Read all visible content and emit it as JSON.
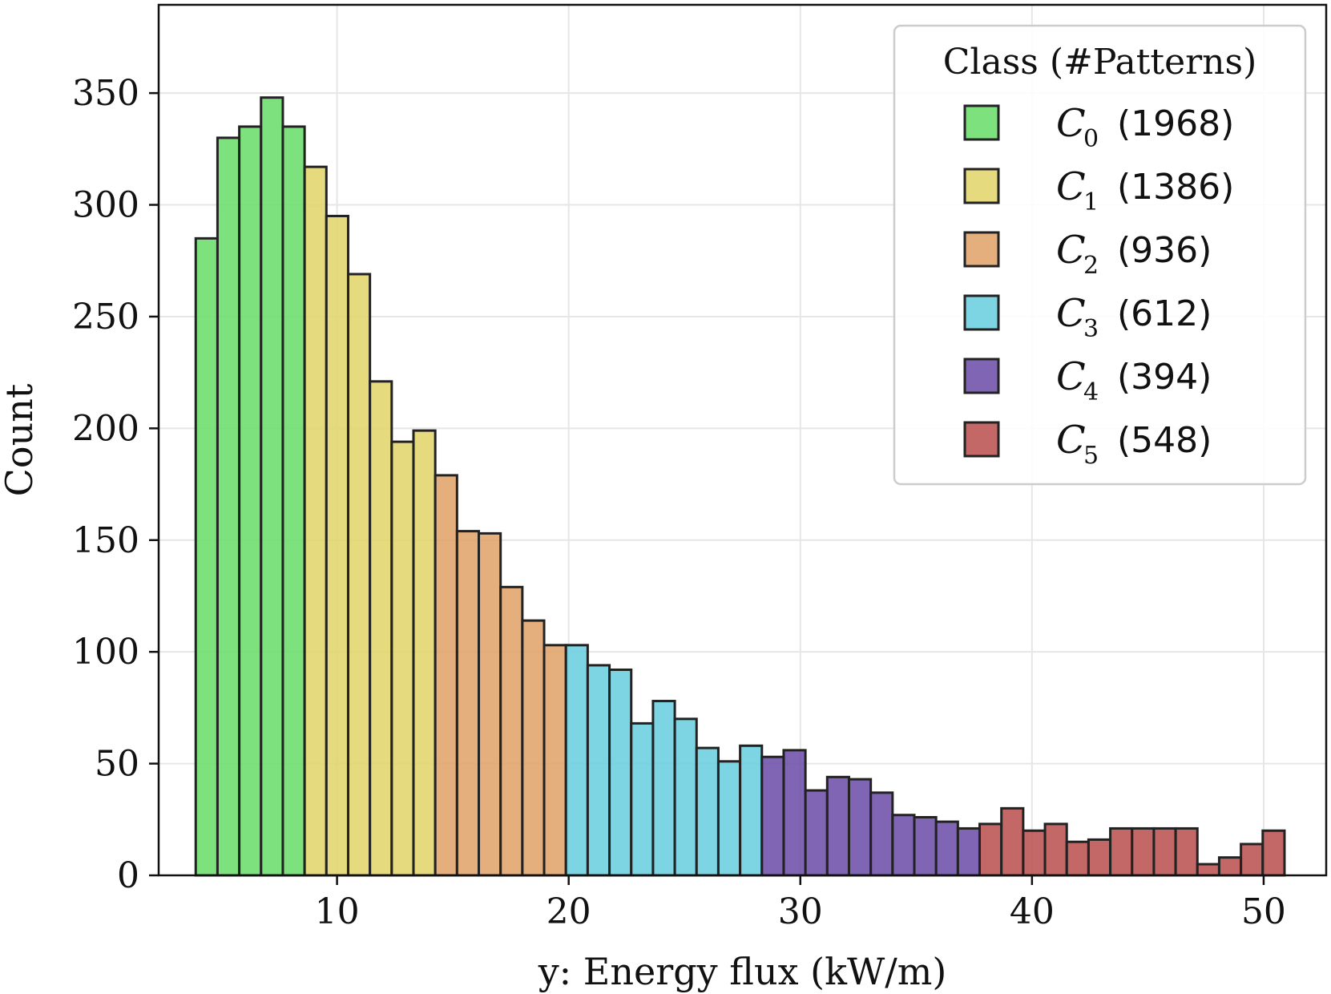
{
  "chart_data": {
    "type": "bar",
    "xlabel": "y: Energy flux (kW/m)",
    "ylabel": "Count",
    "xlim": [
      2.3,
      52.7
    ],
    "ylim": [
      0,
      350
    ],
    "xticks": [
      10,
      20,
      30,
      40,
      50
    ],
    "yticks": [
      0,
      50,
      100,
      150,
      200,
      250,
      300,
      350
    ],
    "grid": true,
    "bin_edges": [
      3.9,
      4.84,
      5.78,
      6.72,
      7.66,
      8.6,
      9.54,
      10.48,
      11.42,
      12.36,
      13.3,
      14.24,
      15.18,
      16.12,
      17.06,
      18.0,
      18.94,
      19.88,
      20.82,
      21.76,
      22.7,
      23.64,
      24.58,
      25.52,
      26.46,
      27.4,
      28.34,
      29.28,
      30.22,
      31.16,
      32.1,
      33.04,
      33.98,
      34.92,
      35.86,
      36.8,
      37.74,
      38.68,
      39.62,
      40.56,
      41.5,
      42.44,
      43.38,
      44.32,
      45.26,
      46.2,
      47.14,
      48.08,
      49.02,
      49.96,
      50.9
    ],
    "counts": [
      285,
      330,
      335,
      348,
      335,
      317,
      295,
      269,
      221,
      194,
      199,
      179,
      154,
      153,
      129,
      114,
      103,
      103,
      94,
      92,
      68,
      78,
      70,
      57,
      51,
      58,
      53,
      56,
      38,
      44,
      43,
      37,
      27,
      26,
      24,
      21,
      23,
      30,
      20,
      23,
      15,
      16,
      21,
      21,
      21,
      21,
      5,
      8,
      14,
      20
    ],
    "bin_class": [
      0,
      0,
      0,
      0,
      0,
      1,
      1,
      1,
      1,
      1,
      1,
      2,
      2,
      2,
      2,
      2,
      2,
      3,
      3,
      3,
      3,
      3,
      3,
      3,
      3,
      3,
      4,
      4,
      4,
      4,
      4,
      4,
      4,
      4,
      4,
      4,
      5,
      5,
      5,
      5,
      5,
      5,
      5,
      5,
      5,
      5,
      5,
      5,
      5,
      5
    ],
    "classes": [
      {
        "symbol": "C",
        "subscript": "0",
        "count_label": "(1968)",
        "color": "#66dd66"
      },
      {
        "symbol": "C",
        "subscript": "1",
        "count_label": "(1386)",
        "color": "#e0d466"
      },
      {
        "symbol": "C",
        "subscript": "2",
        "count_label": "(936)",
        "color": "#e0a066"
      },
      {
        "symbol": "C",
        "subscript": "3",
        "count_label": "(612)",
        "color": "#66ccdd"
      },
      {
        "symbol": "C",
        "subscript": "4",
        "count_label": "(394)",
        "color": "#6a4aa8"
      },
      {
        "symbol": "C",
        "subscript": "5",
        "count_label": "(548)",
        "color": "#b84c4c"
      }
    ],
    "legend": {
      "title": "Class (#Patterns)",
      "placement": "top-right"
    },
    "bar_alpha": 0.85,
    "edge_color": "#222222",
    "grid_color": "#e6e6e6"
  }
}
